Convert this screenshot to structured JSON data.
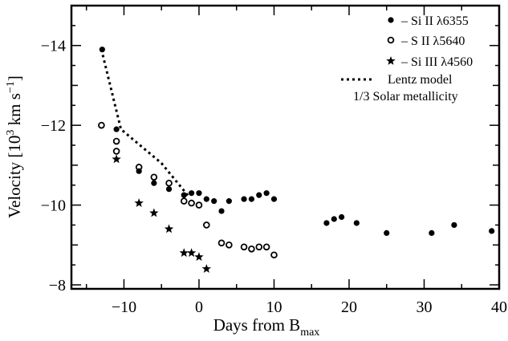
{
  "chart_data": {
    "type": "scatter",
    "xlabel": "Days from B",
    "xlabel_sub": "max",
    "ylabel_main": "Velocity [10",
    "ylabel_exp": "3",
    "ylabel_unit": " km s",
    "ylabel_unit_exp": "−1",
    "ylabel_close": "]",
    "xlim": [
      -17,
      40
    ],
    "ylim": [
      -7.9,
      -15
    ],
    "y_inverted": true,
    "xticks": [
      {
        "value": -10,
        "label": "−10"
      },
      {
        "value": 0,
        "label": "0"
      },
      {
        "value": 10,
        "label": "10"
      },
      {
        "value": 20,
        "label": "20"
      },
      {
        "value": 30,
        "label": "30"
      },
      {
        "value": 40,
        "label": "40"
      }
    ],
    "yticks": [
      {
        "value": -8,
        "label": "−8"
      },
      {
        "value": -10,
        "label": "−10"
      },
      {
        "value": -12,
        "label": "−12"
      },
      {
        "value": -14,
        "label": "−14"
      }
    ],
    "legend_position": "top-right",
    "series": [
      {
        "name": "– Si II λ6355",
        "marker": "filled-circle",
        "points": [
          [
            -12.9,
            -13.9
          ],
          [
            -11.0,
            -11.9
          ],
          [
            -8.0,
            -10.85
          ],
          [
            -6.0,
            -10.55
          ],
          [
            -4.0,
            -10.4
          ],
          [
            -2.0,
            -10.25
          ],
          [
            -1.0,
            -10.3
          ],
          [
            0.0,
            -10.3
          ],
          [
            1.0,
            -10.15
          ],
          [
            2.0,
            -10.1
          ],
          [
            3.0,
            -9.85
          ],
          [
            4.0,
            -10.1
          ],
          [
            6.0,
            -10.15
          ],
          [
            7.0,
            -10.15
          ],
          [
            8.0,
            -10.25
          ],
          [
            9.0,
            -10.3
          ],
          [
            10.0,
            -10.15
          ],
          [
            17.0,
            -9.55
          ],
          [
            18.0,
            -9.65
          ],
          [
            19.0,
            -9.7
          ],
          [
            21.0,
            -9.55
          ],
          [
            25.0,
            -9.3
          ],
          [
            31.0,
            -9.3
          ],
          [
            34.0,
            -9.5
          ],
          [
            39.0,
            -9.35
          ]
        ]
      },
      {
        "name": "– S II λ5640",
        "marker": "open-circle",
        "points": [
          [
            -13.0,
            -12.0
          ],
          [
            -11.0,
            -11.6
          ],
          [
            -11.0,
            -11.35
          ],
          [
            -8.0,
            -10.95
          ],
          [
            -6.0,
            -10.7
          ],
          [
            -4.0,
            -10.55
          ],
          [
            -2.0,
            -10.1
          ],
          [
            -1.0,
            -10.05
          ],
          [
            0.0,
            -10.0
          ],
          [
            1.0,
            -9.5
          ],
          [
            3.0,
            -9.05
          ],
          [
            4.0,
            -9.0
          ],
          [
            6.0,
            -8.95
          ],
          [
            7.0,
            -8.9
          ],
          [
            8.0,
            -8.95
          ],
          [
            9.0,
            -8.95
          ],
          [
            10.0,
            -8.75
          ]
        ]
      },
      {
        "name": "– Si III λ4560",
        "marker": "star",
        "points": [
          [
            -11.0,
            -11.15
          ],
          [
            -8.0,
            -10.05
          ],
          [
            -6.0,
            -9.8
          ],
          [
            -4.0,
            -9.4
          ],
          [
            -2.0,
            -8.8
          ],
          [
            -1.0,
            -8.8
          ],
          [
            0.0,
            -8.7
          ],
          [
            1.0,
            -8.4
          ]
        ]
      }
    ],
    "model": {
      "name": "Lentz model",
      "name2": "1/3 Solar metallicity",
      "style": "dotted",
      "points": [
        [
          -13.0,
          -13.9
        ],
        [
          -10.4,
          -11.9
        ],
        [
          -5.0,
          -11.05
        ],
        [
          -1.3,
          -10.2
        ]
      ]
    }
  }
}
